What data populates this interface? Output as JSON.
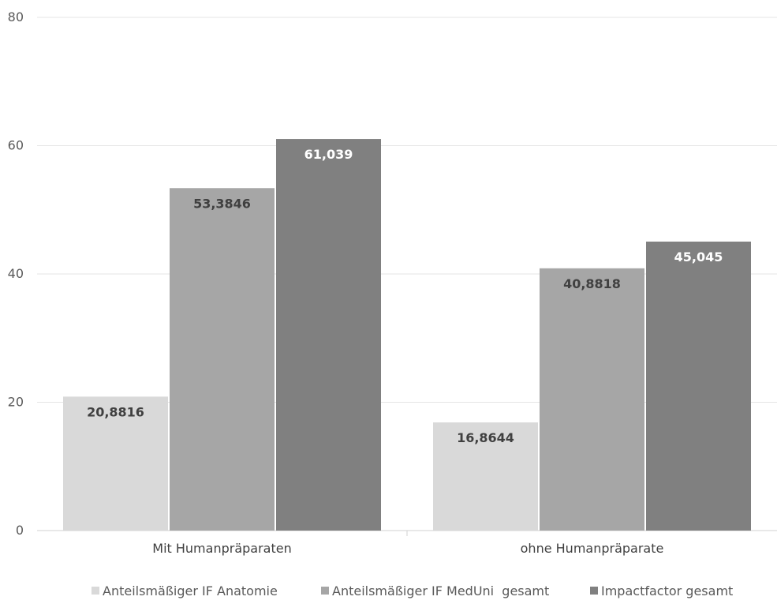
{
  "chart_data": {
    "type": "bar",
    "categories": [
      "Mit Humanpräparaten",
      "ohne Humanpräparate"
    ],
    "series": [
      {
        "name": "Anteilsmäßiger IF Anatomie",
        "values": [
          20.8816,
          16.8644
        ],
        "labels": [
          "20,8816",
          "16,8644"
        ],
        "color": "#d9d9d9",
        "label_color": "#404040"
      },
      {
        "name": "Anteilsmäßiger IF MedUni  gesamt",
        "values": [
          53.3846,
          40.8818
        ],
        "labels": [
          "53,3846",
          "40,8818"
        ],
        "color": "#a6a6a6",
        "label_color": "#404040"
      },
      {
        "name": "Impactfactor gesamt",
        "values": [
          61.039,
          45.045
        ],
        "labels": [
          "61,039",
          "45,045"
        ],
        "color": "#808080",
        "label_color": "#ffffff"
      }
    ],
    "yticks": [
      "0",
      "20",
      "40",
      "60",
      "80"
    ],
    "ylim": [
      0,
      80
    ],
    "grid": true,
    "legend_position": "bottom"
  }
}
